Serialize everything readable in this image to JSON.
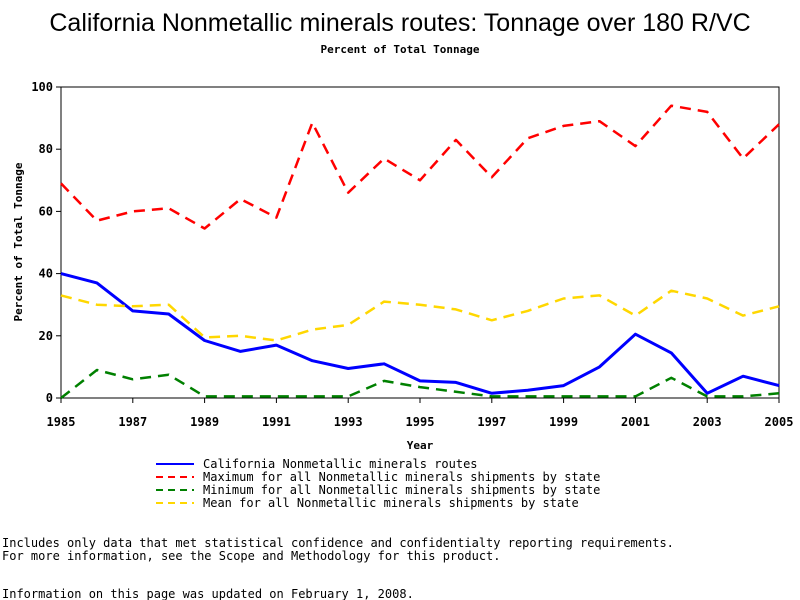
{
  "chart_data": {
    "type": "line",
    "title": "California Nonmetallic minerals routes: Tonnage over 180 R/VC",
    "subtitle": "Percent of Total Tonnage",
    "xlabel": "Year",
    "ylabel": "Percent of Total Tonnage",
    "xlim": [
      1985,
      2005
    ],
    "ylim": [
      0,
      100
    ],
    "x_ticks": [
      1985,
      1987,
      1989,
      1991,
      1993,
      1995,
      1997,
      1999,
      2001,
      2003,
      2005
    ],
    "y_ticks": [
      0,
      20,
      40,
      60,
      80,
      100
    ],
    "grid": false,
    "legend_position": "bottom",
    "x": [
      1985,
      1986,
      1987,
      1988,
      1989,
      1990,
      1991,
      1992,
      1993,
      1994,
      1995,
      1996,
      1997,
      1998,
      1999,
      2000,
      2001,
      2002,
      2003,
      2004,
      2005
    ],
    "series": [
      {
        "name": "California Nonmetallic minerals routes",
        "color": "#0000ff",
        "style": "solid",
        "values": [
          40,
          37,
          28,
          27,
          18.5,
          15,
          17,
          12,
          9.5,
          11,
          5.5,
          5,
          1.5,
          2.5,
          4,
          10,
          20.5,
          14.5,
          1.5,
          7,
          4
        ]
      },
      {
        "name": "Maximum for all Nonmetallic minerals shipments by state",
        "color": "#ff0000",
        "style": "dashed",
        "values": [
          69,
          57,
          60,
          61,
          54.5,
          64,
          58,
          88.5,
          66,
          77,
          70,
          83,
          71,
          83.5,
          87.5,
          89,
          81,
          94,
          92,
          77,
          88
        ]
      },
      {
        "name": "Minimum for all Nonmetallic minerals shipments by state",
        "color": "#008000",
        "style": "dashed",
        "values": [
          0,
          9,
          6,
          7.5,
          0.5,
          0.5,
          0.5,
          0.5,
          0.5,
          5.5,
          3.5,
          2,
          0.5,
          0.5,
          0.5,
          0.5,
          0.5,
          6.5,
          0.5,
          0.5,
          1.5
        ]
      },
      {
        "name": "Mean for all Nonmetallic minerals shipments by state",
        "color": "#ffd700",
        "style": "dashed",
        "values": [
          33,
          30,
          29.5,
          30,
          19.5,
          20,
          18.5,
          22,
          23.5,
          31,
          30,
          28.5,
          25,
          28,
          32,
          33,
          26.5,
          34.5,
          32,
          26.5,
          29.5
        ]
      }
    ]
  },
  "notes": {
    "line1": "Includes only data that met statistical confidence and confidentialty reporting requirements.",
    "line2": "For more information, see the Scope and Methodology for this product.",
    "line3": "Information on this page was updated on February 1, 2008."
  }
}
